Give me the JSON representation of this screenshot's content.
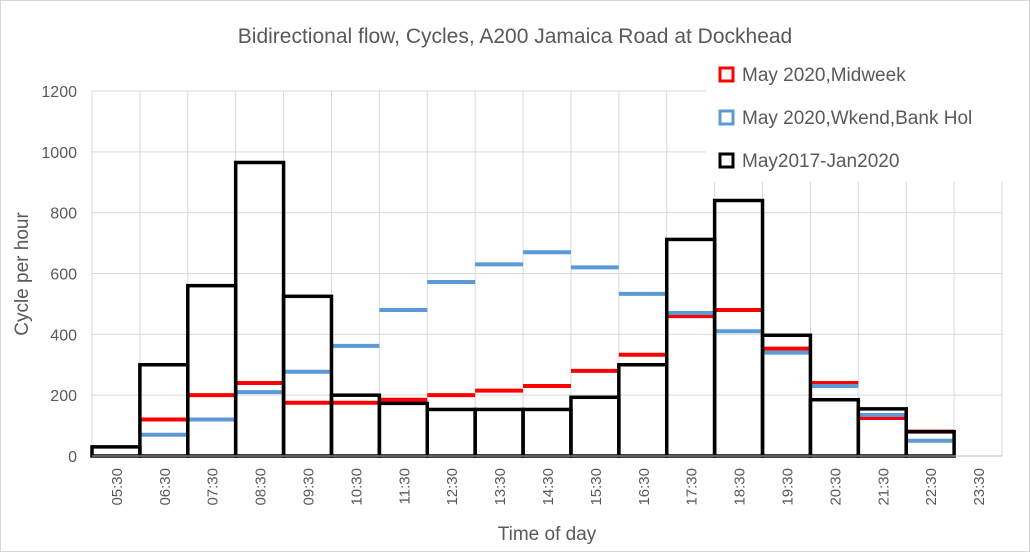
{
  "chart_data": {
    "type": "bar",
    "title": "Bidirectional flow, Cycles, A200 Jamaica Road at Dockhead",
    "xlabel": "Time of day",
    "ylabel": "Cycle per hour",
    "ylim": [
      0,
      1200
    ],
    "yticks": [
      0,
      200,
      400,
      600,
      800,
      1000,
      1200
    ],
    "grid": true,
    "legend_position": "top-right",
    "categories": [
      "05:30",
      "06:30",
      "07:30",
      "08:30",
      "09:30",
      "10:30",
      "11:30",
      "12:30",
      "13:30",
      "14:30",
      "15:30",
      "16:30",
      "17:30",
      "18:30",
      "19:30",
      "20:30",
      "21:30",
      "22:30",
      "23:30"
    ],
    "series": [
      {
        "name": "May 2020,Midweek",
        "color": "#ff0000",
        "style": "step",
        "values": [
          null,
          120,
          200,
          240,
          175,
          175,
          185,
          200,
          215,
          230,
          280,
          333,
          460,
          480,
          353,
          240,
          125,
          80,
          null
        ]
      },
      {
        "name": "May 2020,Wkend,Bank Hol",
        "color": "#5b9bd5",
        "style": "step",
        "values": [
          null,
          70,
          120,
          210,
          277,
          362,
          480,
          572,
          630,
          670,
          620,
          533,
          470,
          410,
          340,
          230,
          135,
          50,
          null
        ]
      },
      {
        "name": "May2017-Jan2020",
        "color": "#000000",
        "style": "outlined-bar",
        "values": [
          30,
          300,
          560,
          965,
          525,
          200,
          173,
          153,
          153,
          153,
          193,
          300,
          712,
          840,
          397,
          185,
          155,
          80,
          null
        ]
      }
    ]
  }
}
